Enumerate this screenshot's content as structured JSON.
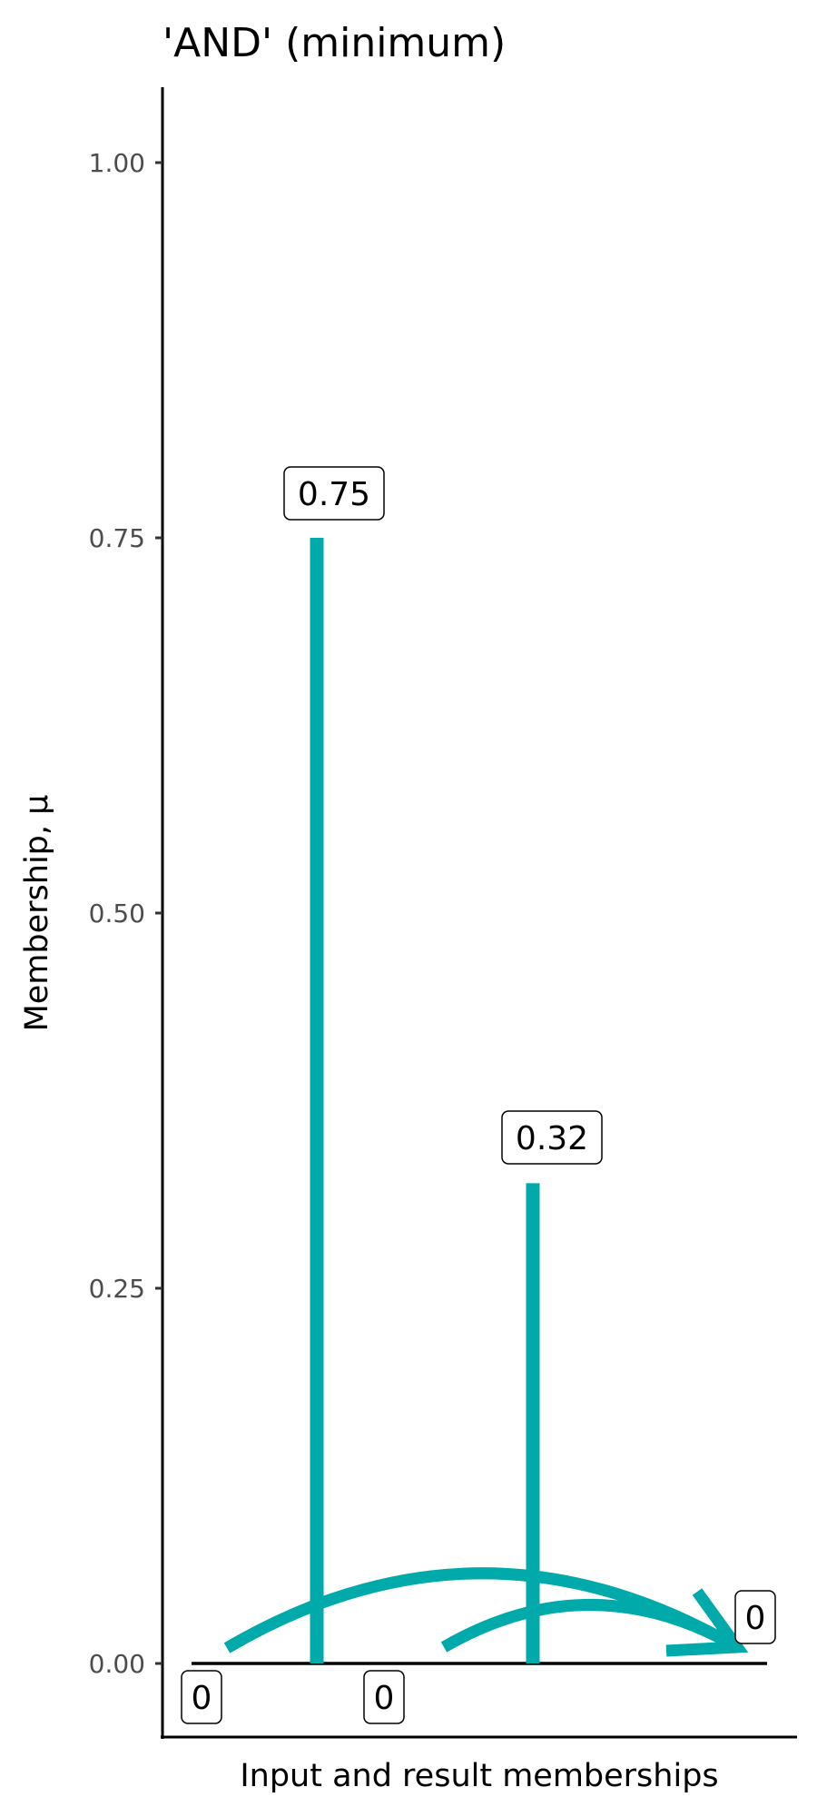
{
  "chart_data": {
    "type": "bar",
    "title": "'AND' (minimum)",
    "xlabel": "Input and result memberships",
    "ylabel": "Membership, μ",
    "ylim": [
      -0.05,
      1.05
    ],
    "yticks": [
      {
        "value": 0.0,
        "label": "0.00"
      },
      {
        "value": 0.25,
        "label": "0.25"
      },
      {
        "value": 0.5,
        "label": "0.50"
      },
      {
        "value": 0.75,
        "label": "0.75"
      },
      {
        "value": 1.0,
        "label": "1.00"
      }
    ],
    "grid": false,
    "series": [
      {
        "values": [
          0,
          0.75,
          0,
          0.32,
          0
        ],
        "labels": [
          "0",
          "0.75",
          "0",
          "0.32",
          "0"
        ]
      }
    ],
    "arrows": [
      {
        "from_index": 0,
        "to_index": 4
      },
      {
        "from_index": 2,
        "to_index": 4
      }
    ],
    "colors": {
      "bar": "#00AAAA",
      "arrow": "#00AAAA",
      "baseline": "#000000"
    }
  }
}
